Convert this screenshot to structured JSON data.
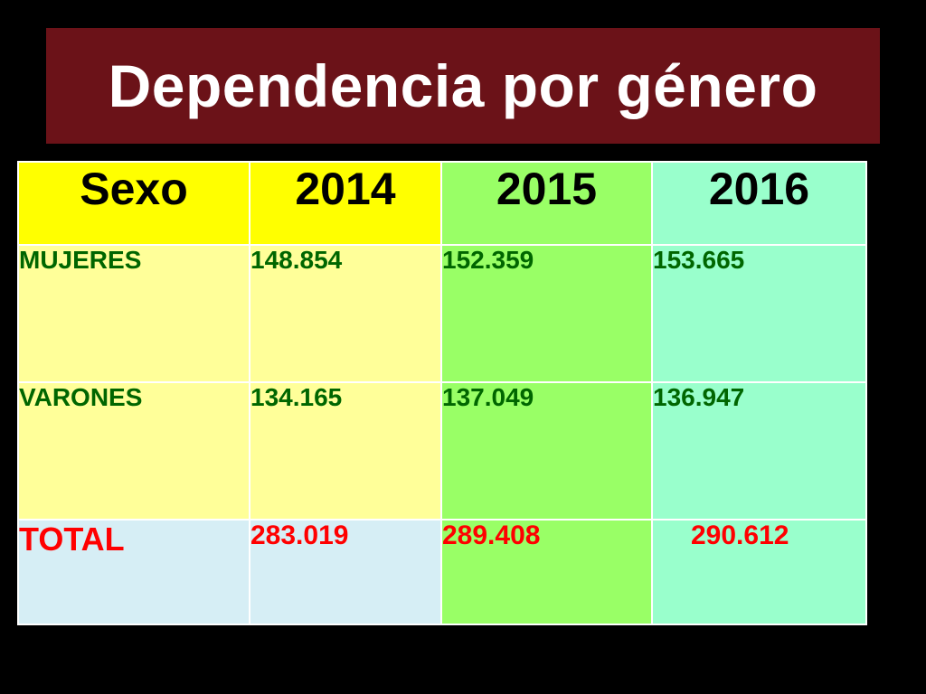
{
  "title": "Dependencia por género",
  "table": {
    "headers": [
      "Sexo",
      "2014",
      "2015",
      "2016"
    ],
    "rows": [
      {
        "label": "MUJERES",
        "values": [
          "148.854",
          "152.359",
          "153.665"
        ]
      },
      {
        "label": "VARONES",
        "values": [
          "134.165",
          "137.049",
          "136.947"
        ]
      }
    ],
    "total": {
      "label": "TOTAL",
      "values": [
        "283.019",
        "289.408",
        "290.612"
      ]
    }
  },
  "colors": {
    "background": "#000000",
    "title_box": "#6b1218",
    "title_text": "#ffffff",
    "header_sexo_2014": "#ffff00",
    "header_2015": "#99ff66",
    "header_2016": "#99ffcc",
    "col_sexo_2014_body": "#ffff99",
    "col_2015_body": "#99ff66",
    "col_2016_body": "#99ffcc",
    "total_row_sexo_2014": "#d6eef5",
    "body_text": "#006600",
    "total_text": "#ff0000"
  }
}
